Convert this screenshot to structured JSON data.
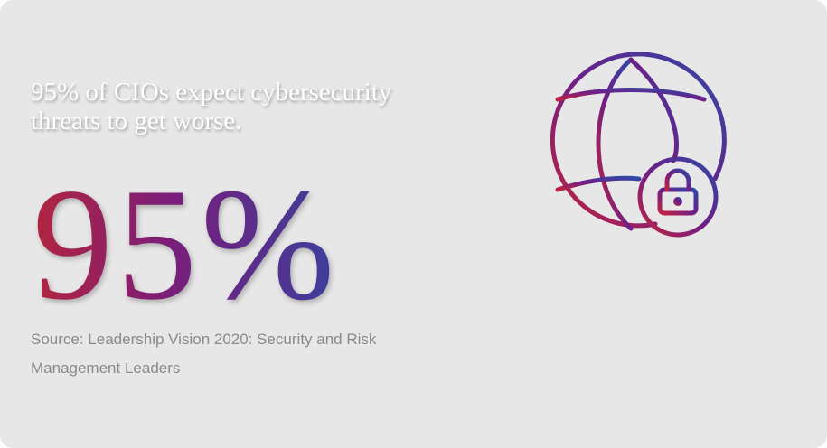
{
  "headline": "95% of CIOs expect cybersecurity threats to get worse.",
  "stat": "95%",
  "source": "Source: Leadership Vision 2020: Security and Risk Management Leaders"
}
